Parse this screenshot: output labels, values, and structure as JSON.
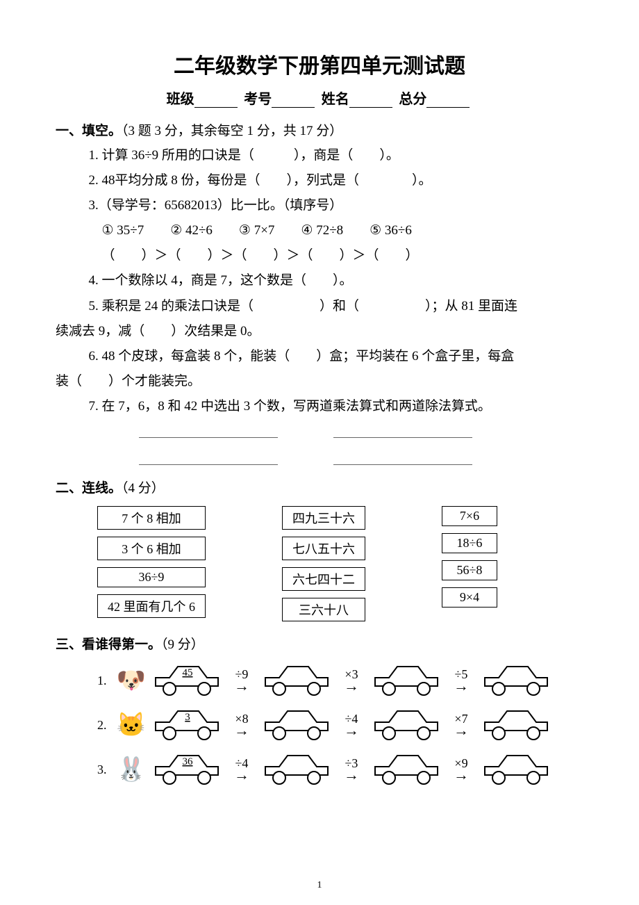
{
  "title": "二年级数学下册第四单元测试题",
  "info": {
    "class_label": "班级",
    "examno_label": "考号",
    "name_label": "姓名",
    "total_label": "总分"
  },
  "s1": {
    "head": "一、填空。",
    "head_note": "（3 题 3 分，其余每空 1 分，共 17 分）",
    "q1": "1. 计算 36÷9 所用的口诀是（　　　），商是（　　）。",
    "q2": "2. 48平均分成 8 份，每份是（　　），列式是（　　　　）。",
    "q3a": "3.（导学号：65682013）比一比。（填序号）",
    "q3b": "① 35÷7　　② 42÷6　　③ 7×7　　④ 72÷8　　⑤ 36÷6",
    "q3c": "（　　）＞（　　）＞（　　）＞（　　）＞（　　）",
    "q4": "4. 一个数除以 4，商是 7，这个数是（　　）。",
    "q5a": "5. 乘积是 24 的乘法口诀是（　　　　　）和（　　　　　）；从 81 里面连",
    "q5b": "续减去 9，减（　　）次结果是 0。",
    "q6a": "6. 48 个皮球，每盒装 8 个，能装（　　）盒；平均装在 6 个盒子里，每盒",
    "q6b": "装（　　）个才能装完。",
    "q7": "7. 在 7，6，8 和 42 中选出 3 个数，写两道乘法算式和两道除法算式。"
  },
  "s2": {
    "head": "二、连线。",
    "head_note": "（4 分）",
    "col1": [
      "7 个 8 相加",
      "3 个 6 相加",
      "36÷9",
      "42 里面有几个 6"
    ],
    "col2": [
      "四九三十六",
      "七八五十六",
      "六七四十二",
      "三六十八"
    ],
    "col3": [
      "7×6",
      "18÷6",
      "56÷8",
      "9×4"
    ]
  },
  "s3": {
    "head": "三、看谁得第一。",
    "head_note": "（9 分）",
    "rows": [
      {
        "n": "1.",
        "animal": "🐶",
        "start": "45",
        "ops": [
          "÷9",
          "×3",
          "÷5"
        ]
      },
      {
        "n": "2.",
        "animal": "🐱",
        "start": "3",
        "ops": [
          "×8",
          "÷4",
          "×7"
        ]
      },
      {
        "n": "3.",
        "animal": "🐰",
        "start": "36",
        "ops": [
          "÷4",
          "÷3",
          "×9"
        ]
      }
    ]
  },
  "page_number": "1",
  "style": {
    "car_stroke": "#000000",
    "car_fill": "#ffffff",
    "box_border": "#000000",
    "font_color": "#000000",
    "car_w": 110,
    "car_h": 52
  }
}
